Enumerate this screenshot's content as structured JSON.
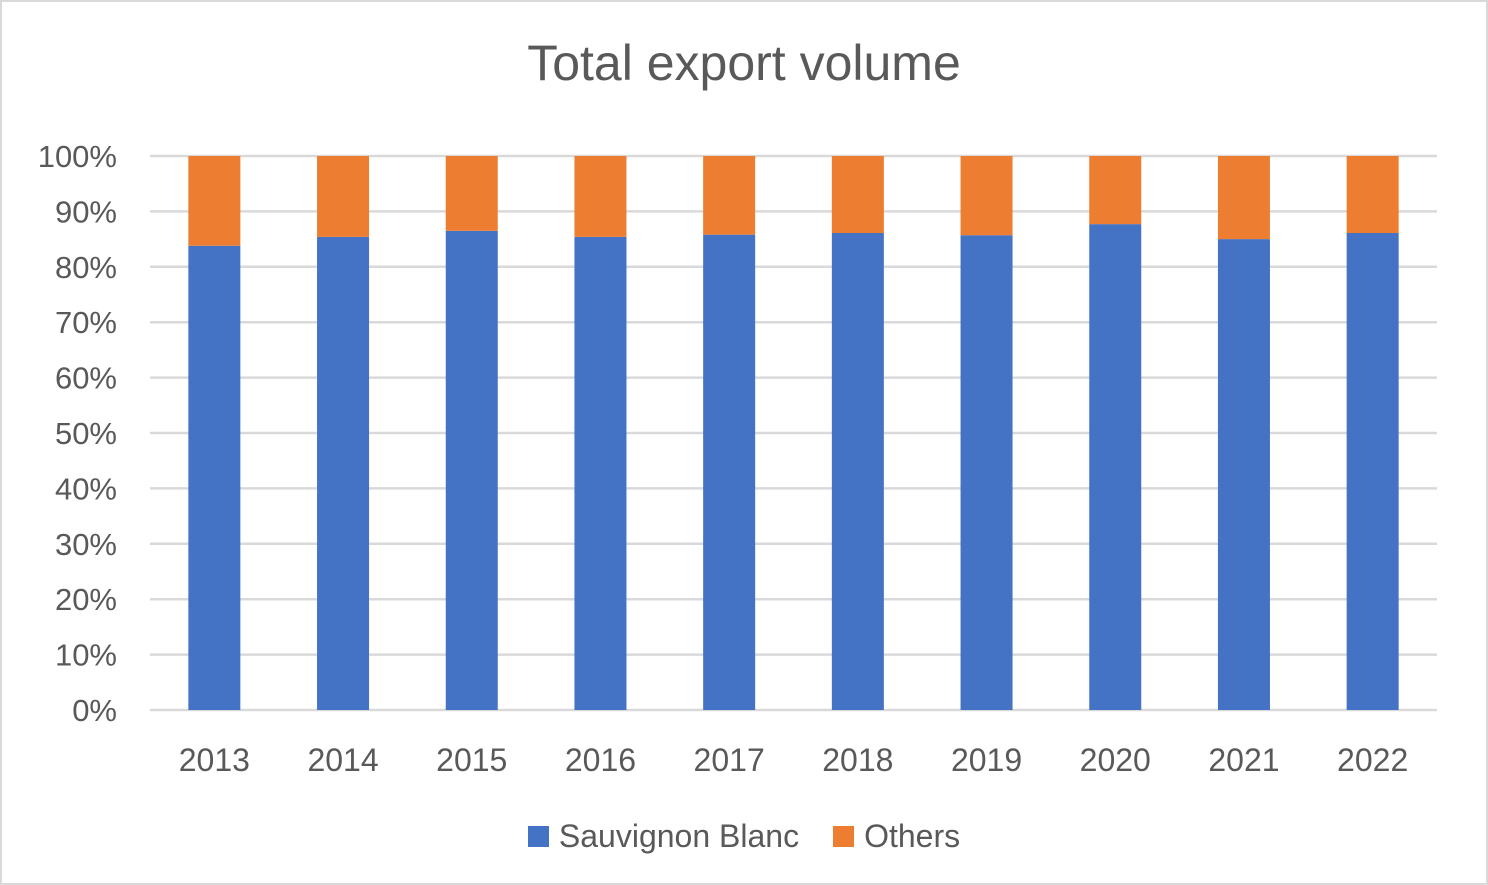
{
  "chart_data": {
    "type": "bar",
    "stacked": true,
    "title": "Total export volume",
    "xlabel": "",
    "ylabel": "",
    "categories": [
      "2013",
      "2014",
      "2015",
      "2016",
      "2017",
      "2018",
      "2019",
      "2020",
      "2021",
      "2022"
    ],
    "series": [
      {
        "name": "Sauvignon Blanc",
        "color": "#4472c4",
        "values": [
          83.8,
          85.4,
          86.5,
          85.4,
          85.8,
          86.1,
          85.7,
          87.7,
          85.0,
          86.1
        ]
      },
      {
        "name": "Others",
        "color": "#ed7d31",
        "values": [
          16.2,
          14.6,
          13.5,
          14.6,
          14.2,
          13.9,
          14.3,
          12.3,
          15.0,
          13.9
        ]
      }
    ],
    "yticks": [
      "0%",
      "10%",
      "20%",
      "30%",
      "40%",
      "50%",
      "60%",
      "70%",
      "80%",
      "90%",
      "100%"
    ],
    "ylim": [
      0,
      100
    ],
    "grid": true,
    "legend_position": "bottom"
  }
}
